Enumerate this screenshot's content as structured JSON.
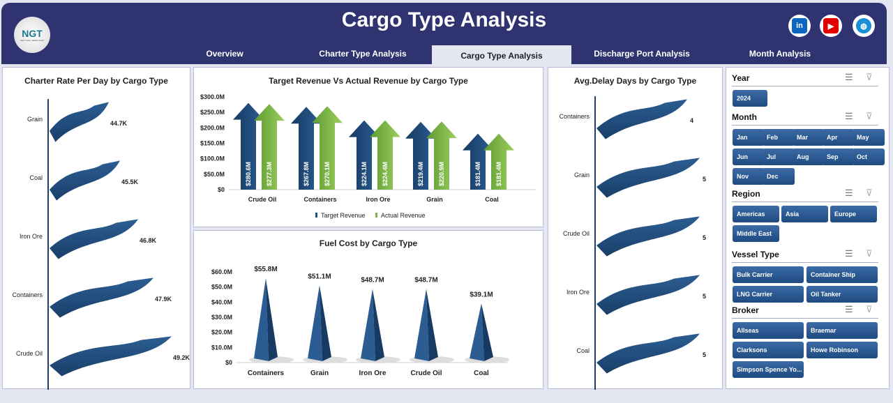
{
  "header": {
    "title": "Cargo Type Analysis",
    "logo_text": "NGT",
    "logo_subtext": "NEXT GEN TEMPLATES",
    "tabs": [
      {
        "label": "Overview"
      },
      {
        "label": "Charter Type Analysis"
      },
      {
        "label": "Cargo Type Analysis",
        "active": true
      },
      {
        "label": "Discharge Port Analysis"
      },
      {
        "label": "Month Analysis"
      }
    ],
    "social": [
      {
        "icon": "linkedin-icon",
        "text": "in",
        "color": "#0a66c2"
      },
      {
        "icon": "youtube-icon",
        "text": "▶",
        "color": "#e00000"
      },
      {
        "icon": "globe-icon",
        "text": "◍",
        "color": "#1a8fd6"
      }
    ]
  },
  "chart_data": [
    {
      "id": "charter",
      "type": "bar",
      "title": "Charter Rate Per Day by Cargo Type",
      "categories": [
        "Grain",
        "Coal",
        "Iron Ore",
        "Containers",
        "Crude Oil"
      ],
      "values": [
        44.7,
        45.5,
        46.8,
        47.9,
        49.2
      ],
      "labels": [
        "44.7K",
        "45.5K",
        "46.8K",
        "47.9K",
        "49.2K"
      ],
      "orientation": "horizontal",
      "color": "#1f4e79"
    },
    {
      "id": "revenue",
      "type": "bar",
      "title": "Target Revenue Vs Actual Revenue by Cargo Type",
      "categories": [
        "Crude Oil",
        "Containers",
        "Iron Ore",
        "Grain",
        "Coal"
      ],
      "series": [
        {
          "name": "Target Revenue",
          "values": [
            280.6,
            267.8,
            224.1,
            219.4,
            181.4
          ],
          "labels": [
            "$280.6M",
            "$267.8M",
            "$224.1M",
            "$219.4M",
            "$181.4M"
          ],
          "color": "#1f4e79"
        },
        {
          "name": "Actual Revenue",
          "values": [
            277.3,
            270.1,
            224.4,
            220.9,
            181.4
          ],
          "labels": [
            "$277.3M",
            "$270.1M",
            "$224.4M",
            "$220.9M",
            "$181.4M"
          ],
          "color": "#7ab648"
        }
      ],
      "yticks": [
        "$0",
        "$50.0M",
        "$100.0M",
        "$150.0M",
        "$200.0M",
        "$250.0M",
        "$300.0M"
      ],
      "ylim": [
        0,
        300
      ],
      "legend": "bottom"
    },
    {
      "id": "fuel",
      "type": "bar",
      "title": "Fuel Cost by Cargo Type",
      "categories": [
        "Containers",
        "Grain",
        "Iron Ore",
        "Crude Oil",
        "Coal"
      ],
      "values": [
        55.8,
        51.1,
        48.7,
        48.7,
        39.1
      ],
      "labels": [
        "$55.8M",
        "$51.1M",
        "$48.7M",
        "$48.7M",
        "$39.1M"
      ],
      "yticks": [
        "$0",
        "$10.0M",
        "$20.0M",
        "$30.0M",
        "$40.0M",
        "$50.0M",
        "$60.0M"
      ],
      "ylim": [
        0,
        60
      ],
      "color": "#1f4e79"
    },
    {
      "id": "delay",
      "type": "bar",
      "title": "Avg.Delay Days by Cargo Type",
      "categories": [
        "Containers",
        "Grain",
        "Crude Oil",
        "Iron Ore",
        "Coal"
      ],
      "values": [
        4,
        5,
        5,
        5,
        5
      ],
      "labels": [
        "4",
        "5",
        "5",
        "5",
        "5"
      ],
      "orientation": "horizontal",
      "color": "#1f4e79"
    }
  ],
  "slicers": [
    {
      "title": "Year",
      "items": [
        "2024"
      ]
    },
    {
      "title": "Month",
      "items": [
        "Jan",
        "Feb",
        "Mar",
        "Apr",
        "May",
        "Jun",
        "Jul",
        "Aug",
        "Sep",
        "Oct",
        "Nov",
        "Dec"
      ]
    },
    {
      "title": "Region",
      "items": [
        "Americas",
        "Asia",
        "Europe",
        "Middle East"
      ]
    },
    {
      "title": "Vessel Type",
      "items": [
        "Bulk Carrier",
        "Container Ship",
        "LNG Carrier",
        "Oil Tanker"
      ]
    },
    {
      "title": "Broker",
      "items": [
        "Allseas",
        "Braemar",
        "Clarksons",
        "Howe Robinson",
        "Simpson Spence Yo..."
      ]
    }
  ]
}
